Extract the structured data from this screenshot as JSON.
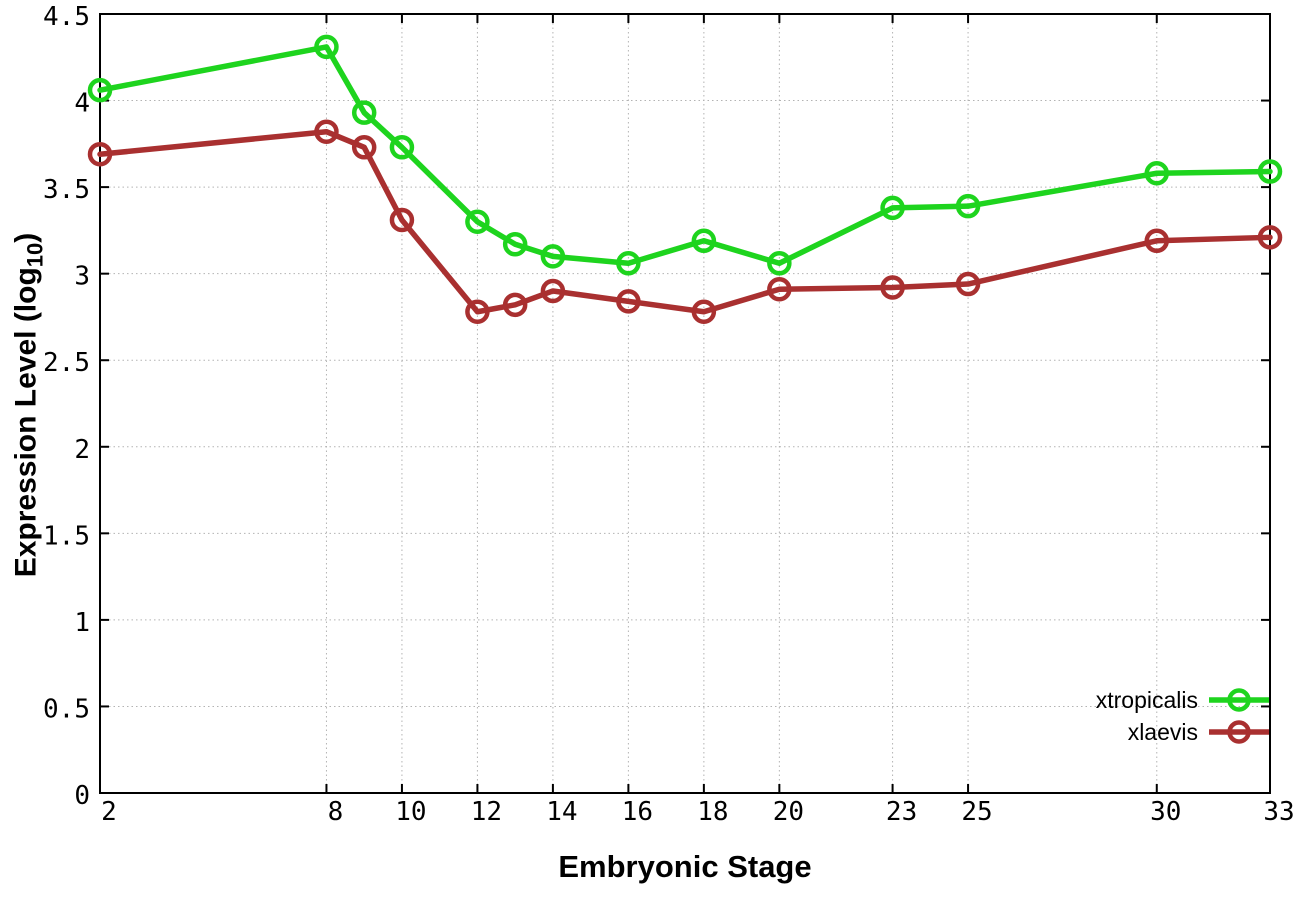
{
  "chart_data": {
    "type": "line",
    "title": "",
    "xlabel": "Embryonic Stage",
    "ylabel": "Expression Level (log10)",
    "ylabel_parts": {
      "prefix": "Expression Level (log",
      "sub": "10",
      "suffix": ")"
    },
    "xlim": [
      2,
      33
    ],
    "ylim": [
      0,
      4.5
    ],
    "grid": true,
    "legend_position": "bottom-right",
    "x_ticks": [
      2,
      8,
      10,
      12,
      14,
      16,
      18,
      20,
      23,
      25,
      30,
      33
    ],
    "y_ticks": [
      0,
      0.5,
      1,
      1.5,
      2,
      2.5,
      3,
      3.5,
      4,
      4.5
    ],
    "x": [
      2,
      8,
      9,
      10,
      12,
      13,
      14,
      16,
      18,
      20,
      23,
      25,
      30,
      33
    ],
    "series": [
      {
        "name": "xtropicalis",
        "color": "#1ed41e",
        "values": [
          4.06,
          4.31,
          3.93,
          3.73,
          3.3,
          3.17,
          3.1,
          3.06,
          3.19,
          3.06,
          3.38,
          3.39,
          3.58,
          3.59
        ]
      },
      {
        "name": "xlaevis",
        "color": "#a93030",
        "values": [
          3.69,
          3.82,
          3.73,
          3.31,
          2.78,
          2.82,
          2.9,
          2.84,
          2.78,
          2.91,
          2.92,
          2.94,
          3.19,
          3.21
        ]
      }
    ],
    "axis_color": "#000000",
    "grid_color": "#b3b3b3",
    "background_color": "#ffffff"
  }
}
